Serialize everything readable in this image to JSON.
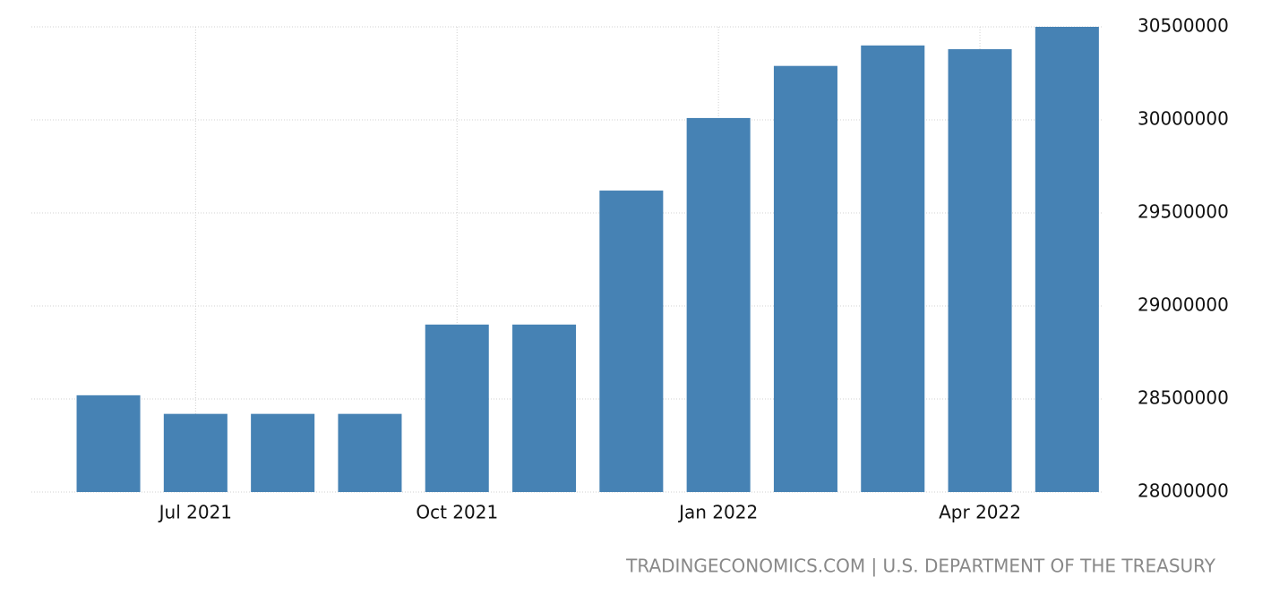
{
  "chart_data": {
    "type": "bar",
    "categories": [
      null,
      "Jul 2021",
      null,
      null,
      "Oct 2021",
      null,
      null,
      "Jan 2022",
      null,
      null,
      "Apr 2022",
      null
    ],
    "values": [
      28520000,
      28420000,
      28420000,
      28420000,
      28900000,
      28900000,
      29620000,
      30010000,
      30290000,
      30400000,
      30380000,
      30500000
    ],
    "color": "#4682b4",
    "ylim": [
      28000000,
      30500000
    ],
    "yticks": [
      28000000,
      28500000,
      29000000,
      29500000,
      30000000,
      30500000
    ],
    "grid": true,
    "source": "TRADINGECONOMICS.COM | U.S. DEPARTMENT OF THE TREASURY"
  }
}
